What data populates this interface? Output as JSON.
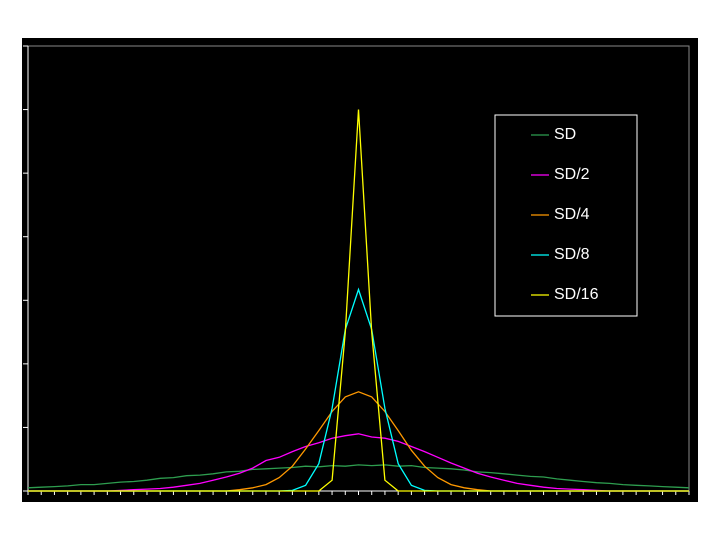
{
  "chart_data": {
    "type": "line",
    "x": [
      0,
      2,
      4,
      6,
      8,
      10,
      12,
      14,
      16,
      18,
      20,
      22,
      24,
      26,
      28,
      30,
      32,
      34,
      36,
      38,
      40,
      42,
      44,
      46,
      48,
      50,
      52,
      54,
      56,
      58,
      60,
      62,
      64,
      66,
      68,
      70,
      72,
      74,
      76,
      78,
      80,
      82,
      84,
      86,
      88,
      90,
      92,
      94,
      96,
      98,
      100
    ],
    "xlim": [
      0,
      100
    ],
    "ylim": [
      0,
      7
    ],
    "yticks": [
      0,
      1,
      2,
      3,
      4,
      5,
      6,
      7
    ],
    "legend": "upper right",
    "series": [
      {
        "name": "SD",
        "color": "#2e9e4f",
        "values": [
          0.05,
          0.06,
          0.07,
          0.08,
          0.1,
          0.1,
          0.12,
          0.14,
          0.15,
          0.17,
          0.2,
          0.21,
          0.24,
          0.25,
          0.27,
          0.3,
          0.31,
          0.34,
          0.35,
          0.36,
          0.37,
          0.39,
          0.38,
          0.4,
          0.39,
          0.41,
          0.4,
          0.41,
          0.39,
          0.4,
          0.37,
          0.36,
          0.35,
          0.33,
          0.3,
          0.29,
          0.27,
          0.25,
          0.23,
          0.22,
          0.19,
          0.17,
          0.15,
          0.13,
          0.12,
          0.1,
          0.09,
          0.08,
          0.07,
          0.06,
          0.05
        ]
      },
      {
        "name": "SD/2",
        "color": "#ff00ff",
        "values": [
          0,
          0,
          0,
          0,
          0,
          0,
          0,
          0.01,
          0.02,
          0.03,
          0.04,
          0.06,
          0.09,
          0.12,
          0.17,
          0.22,
          0.28,
          0.36,
          0.48,
          0.53,
          0.62,
          0.7,
          0.76,
          0.83,
          0.87,
          0.9,
          0.85,
          0.83,
          0.78,
          0.7,
          0.62,
          0.53,
          0.44,
          0.36,
          0.28,
          0.22,
          0.17,
          0.12,
          0.09,
          0.06,
          0.04,
          0.03,
          0.02,
          0.01,
          0,
          0,
          0,
          0,
          0,
          0,
          0
        ]
      },
      {
        "name": "SD/4",
        "color": "#ff9900",
        "values": [
          0,
          0,
          0,
          0,
          0,
          0,
          0,
          0,
          0,
          0,
          0,
          0,
          0,
          0,
          0,
          0,
          0.02,
          0.05,
          0.1,
          0.21,
          0.39,
          0.66,
          0.95,
          1.25,
          1.48,
          1.56,
          1.48,
          1.25,
          0.95,
          0.64,
          0.39,
          0.21,
          0.1,
          0.05,
          0.02,
          0,
          0,
          0,
          0,
          0,
          0,
          0,
          0,
          0,
          0,
          0,
          0,
          0,
          0,
          0,
          0
        ]
      },
      {
        "name": "SD/8",
        "color": "#00ffff",
        "values": [
          0,
          0,
          0,
          0,
          0,
          0,
          0,
          0,
          0,
          0,
          0,
          0,
          0,
          0,
          0,
          0,
          0,
          0,
          0,
          0,
          0.01,
          0.09,
          0.43,
          1.3,
          2.54,
          3.17,
          2.54,
          1.3,
          0.43,
          0.09,
          0.01,
          0,
          0,
          0,
          0,
          0,
          0,
          0,
          0,
          0,
          0,
          0,
          0,
          0,
          0,
          0,
          0,
          0,
          0,
          0,
          0
        ]
      },
      {
        "name": "SD/16",
        "color": "#ffff00",
        "values": [
          0,
          0,
          0,
          0,
          0,
          0,
          0,
          0,
          0,
          0,
          0,
          0,
          0,
          0,
          0,
          0,
          0,
          0,
          0,
          0,
          0,
          0,
          0,
          0.17,
          2.5,
          6.0,
          2.5,
          0.17,
          0,
          0,
          0,
          0,
          0,
          0,
          0,
          0,
          0,
          0,
          0,
          0,
          0,
          0,
          0,
          0,
          0,
          0,
          0,
          0,
          0,
          0,
          0
        ]
      }
    ]
  }
}
